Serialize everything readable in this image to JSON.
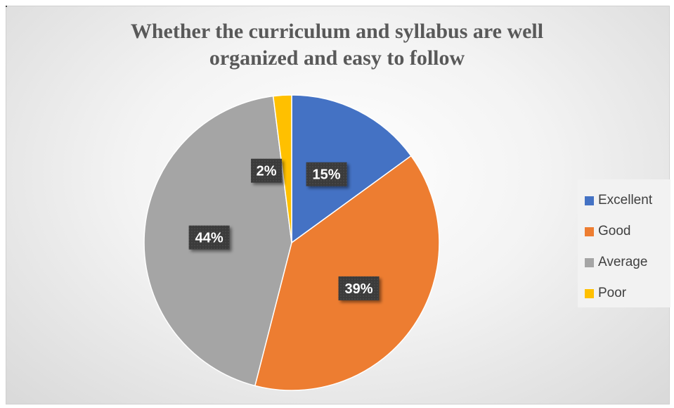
{
  "chart_data": {
    "type": "pie",
    "title_lines": [
      "Whether the curriculum and syllabus are well",
      "organized and easy to follow"
    ],
    "slices": [
      {
        "label": "Excellent",
        "value": 15,
        "display": "15%",
        "color": "#4472C4"
      },
      {
        "label": "Good",
        "value": 39,
        "display": "39%",
        "color": "#ED7D31"
      },
      {
        "label": "Average",
        "value": 44,
        "display": "44%",
        "color": "#A5A5A5"
      },
      {
        "label": "Poor",
        "value": 2,
        "display": "2%",
        "color": "#FFC000"
      }
    ],
    "legend_position": "right",
    "data_label_style": "dark boxed labels"
  }
}
